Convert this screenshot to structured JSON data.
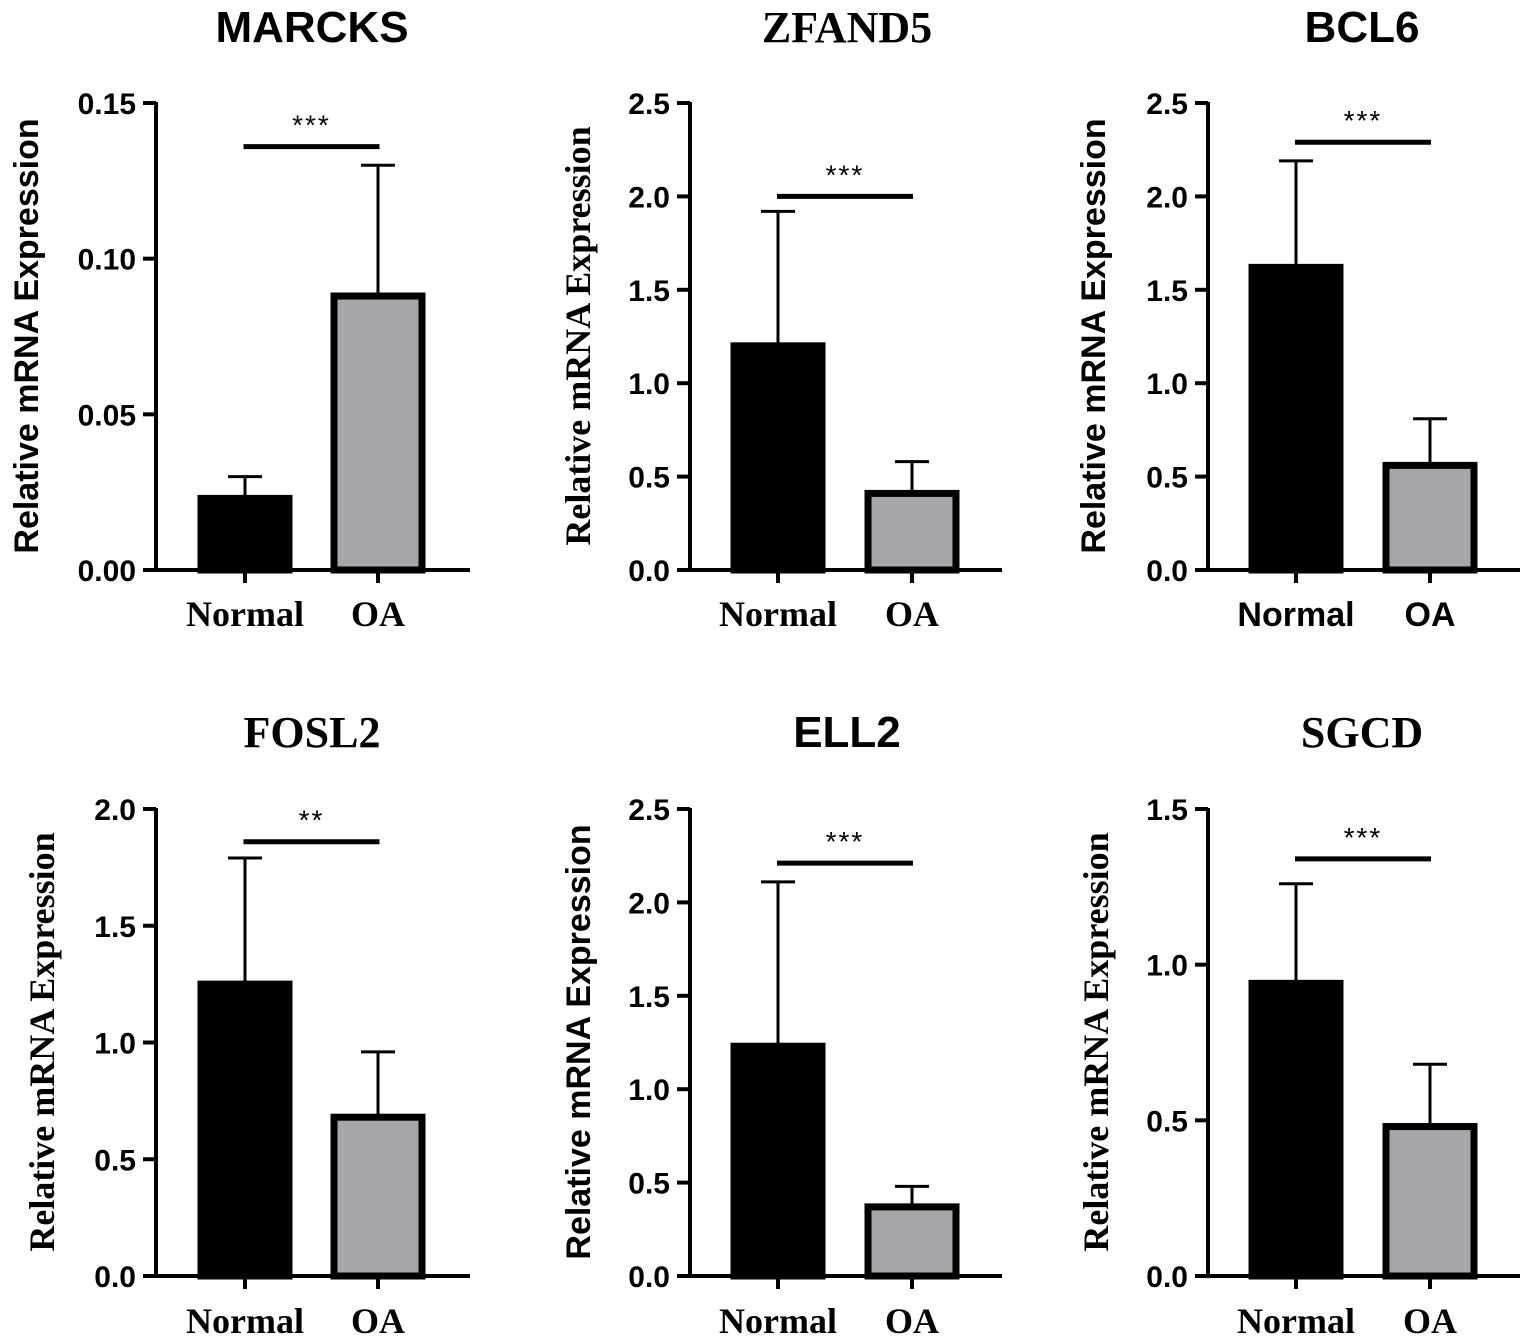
{
  "chart_data": [
    {
      "type": "bar",
      "title": "MARCKS",
      "categories": [
        "Normal",
        "OA"
      ],
      "values": [
        0.023,
        0.088
      ],
      "errors": [
        0.007,
        0.042
      ],
      "colors": [
        "#000000",
        "#a6a6aa"
      ],
      "ylabel": "Relative mRNA Expression",
      "ylim": [
        0,
        0.15
      ],
      "yticks": [
        0.0,
        0.05,
        0.1,
        0.15
      ],
      "ytick_labels": [
        "0.00",
        "0.05",
        "0.10",
        "0.15"
      ],
      "significance": "***",
      "significance_y": 0.136
    },
    {
      "type": "bar",
      "title": "ZFAND5",
      "categories": [
        "Normal",
        "OA"
      ],
      "values": [
        1.2,
        0.41
      ],
      "errors": [
        0.72,
        0.17
      ],
      "colors": [
        "#000000",
        "#a6a6aa"
      ],
      "ylabel": "Relative mRNA Expression",
      "ylim": [
        0,
        2.5
      ],
      "yticks": [
        0.0,
        0.5,
        1.0,
        1.5,
        2.0,
        2.5
      ],
      "ytick_labels": [
        "0.0",
        "0.5",
        "1.0",
        "1.5",
        "2.0",
        "2.5"
      ],
      "significance": "***",
      "significance_y": 2.0
    },
    {
      "type": "bar",
      "title": "BCL6",
      "categories": [
        "Normal",
        "OA"
      ],
      "values": [
        1.62,
        0.56
      ],
      "errors": [
        0.57,
        0.25
      ],
      "colors": [
        "#000000",
        "#a6a6aa"
      ],
      "ylabel": "Relative mRNA Expression",
      "ylim": [
        0,
        2.5
      ],
      "yticks": [
        0.0,
        0.5,
        1.0,
        1.5,
        2.0,
        2.5
      ],
      "ytick_labels": [
        "0.0",
        "0.5",
        "1.0",
        "1.5",
        "2.0",
        "2.5"
      ],
      "significance": "***",
      "significance_y": 2.29
    },
    {
      "type": "bar",
      "title": "FOSL2",
      "categories": [
        "Normal",
        "OA"
      ],
      "values": [
        1.25,
        0.68
      ],
      "errors": [
        0.54,
        0.28
      ],
      "colors": [
        "#000000",
        "#a6a6aa"
      ],
      "ylabel": "Relative mRNA Expression",
      "ylim": [
        0,
        2.0
      ],
      "yticks": [
        0.0,
        0.5,
        1.0,
        1.5,
        2.0
      ],
      "ytick_labels": [
        "0.0",
        "0.5",
        "1.0",
        "1.5",
        "2.0"
      ],
      "significance": "**",
      "significance_y": 1.86
    },
    {
      "type": "bar",
      "title": "ELL2",
      "categories": [
        "Normal",
        "OA"
      ],
      "values": [
        1.23,
        0.37
      ],
      "errors": [
        0.88,
        0.11
      ],
      "colors": [
        "#000000",
        "#a6a6aa"
      ],
      "ylabel": "Relative mRNA Expression",
      "ylim": [
        0,
        2.5
      ],
      "yticks": [
        0.0,
        0.5,
        1.0,
        1.5,
        2.0,
        2.5
      ],
      "ytick_labels": [
        "0.0",
        "0.5",
        "1.0",
        "1.5",
        "2.0",
        "2.5"
      ],
      "significance": "***",
      "significance_y": 2.21
    },
    {
      "type": "bar",
      "title": "SGCD",
      "categories": [
        "Normal",
        "OA"
      ],
      "values": [
        0.94,
        0.48
      ],
      "errors": [
        0.32,
        0.2
      ],
      "colors": [
        "#000000",
        "#a6a6aa"
      ],
      "ylabel": "Relative mRNA Expression",
      "ylim": [
        0,
        1.5
      ],
      "yticks": [
        0.0,
        0.5,
        1.0,
        1.5
      ],
      "ytick_labels": [
        "0.0",
        "0.5",
        "1.0",
        "1.5"
      ],
      "significance": "***",
      "significance_y": 1.34
    }
  ]
}
